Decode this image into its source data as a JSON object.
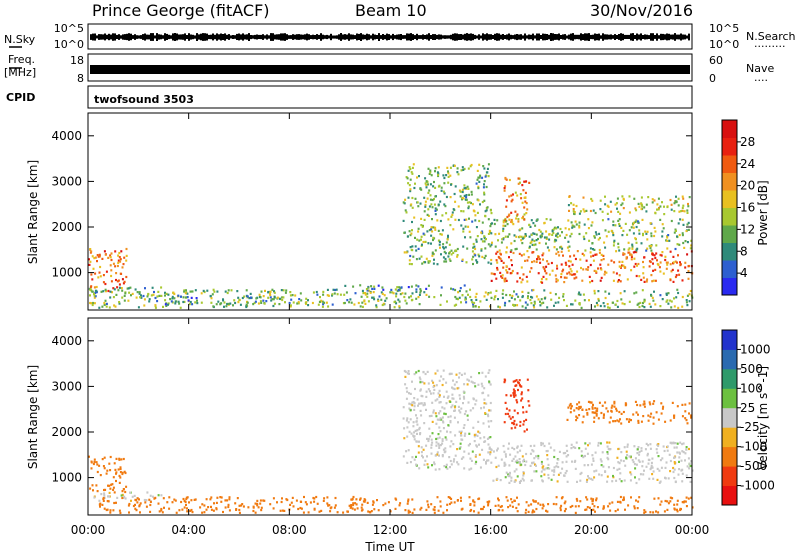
{
  "header": {
    "station": "Prince George (fitACF)",
    "beam": "Beam 10",
    "date": "30/Nov/2016"
  },
  "side_labels": {
    "nsky": "N.Sky",
    "freq_line1": "Freq.",
    "freq_line2": "[MHz]",
    "cpid": "CPID",
    "nsearch": "N.Search",
    "nave": "Nave",
    "dots_nsearch": "·········",
    "dots_nave": "····"
  },
  "strip_ticks": {
    "noise_left_top": "10^5",
    "noise_left_bottom": "10^0",
    "noise_right_top": "10^5",
    "noise_right_bottom": "10^0",
    "freq_left_top": "18",
    "freq_left_bottom": "8",
    "nave_right_top": "60",
    "nave_right_bottom": "0"
  },
  "cpid_text": "twofsound 3503",
  "axes": {
    "ylabel": "Slant Range [km]",
    "xlabel": "Time UT",
    "x_ticks": [
      "00:00",
      "04:00",
      "08:00",
      "12:00",
      "16:00",
      "20:00",
      "00:00"
    ],
    "y_ticks": [
      "1000",
      "2000",
      "3000",
      "4000"
    ]
  },
  "colorbars": {
    "power": {
      "label": "Power [dB]",
      "ticks": [
        "4",
        "8",
        "12",
        "16",
        "20",
        "24",
        "28"
      ],
      "colors": [
        "#2a2af0",
        "#2d5fd0",
        "#2f8a7a",
        "#5fa84a",
        "#a8c830",
        "#e8c020",
        "#f09020",
        "#f05a10",
        "#e82010",
        "#d81010"
      ]
    },
    "velocity": {
      "label": "Velocity [m s^-1]",
      "ticks": [
        "1000",
        "500",
        "100",
        "25",
        "-25",
        "-100",
        "-500",
        "-1000"
      ],
      "colors": [
        "#2233cc",
        "#2a6ab0",
        "#2f9a6a",
        "#6cc040",
        "#c8c8c8",
        "#f0b020",
        "#f07a10",
        "#f03a10",
        "#e81010"
      ]
    }
  },
  "chart_data": {
    "type": "heatmap",
    "x_range_hours": [
      0,
      24
    ],
    "y_range_km": [
      180,
      4500
    ],
    "power_panel": {
      "color_scale": "Power [dB]",
      "regions": [
        {
          "t0": 0.0,
          "t1": 1.5,
          "r0": 600,
          "r1": 1600,
          "power": 22
        },
        {
          "t0": 0.0,
          "t1": 3.0,
          "r0": 500,
          "r1": 700,
          "power": 10
        },
        {
          "t0": 0.0,
          "t1": 24.0,
          "r0": 250,
          "r1": 650,
          "power": 12
        },
        {
          "t0": 3.0,
          "t1": 8.0,
          "r0": 300,
          "r1": 500,
          "power": 8
        },
        {
          "t0": 10.0,
          "t1": 15.0,
          "r0": 600,
          "r1": 750,
          "power": 8
        },
        {
          "t0": 12.5,
          "t1": 16.0,
          "r0": 1200,
          "r1": 3400,
          "power": 12
        },
        {
          "t0": 16.0,
          "t1": 24.0,
          "r0": 800,
          "r1": 1500,
          "power": 22
        },
        {
          "t0": 16.0,
          "t1": 24.0,
          "r0": 1500,
          "r1": 2200,
          "power": 12
        },
        {
          "t0": 19.0,
          "t1": 24.0,
          "r0": 2300,
          "r1": 2700,
          "power": 14
        },
        {
          "t0": 16.5,
          "t1": 17.5,
          "r0": 2000,
          "r1": 3100,
          "power": 20
        }
      ]
    },
    "velocity_panel": {
      "color_scale": "Velocity [m s^-1]",
      "regions": [
        {
          "t0": 0.0,
          "t1": 1.5,
          "r0": 700,
          "r1": 1500,
          "velocity": -100
        },
        {
          "t0": 0.0,
          "t1": 3.0,
          "r0": 500,
          "r1": 700,
          "velocity": 0
        },
        {
          "t0": 0.0,
          "t1": 24.0,
          "r0": 250,
          "r1": 600,
          "velocity": -100
        },
        {
          "t0": 12.5,
          "t1": 16.0,
          "r0": 1200,
          "r1": 3400,
          "velocity": 0
        },
        {
          "t0": 16.0,
          "t1": 24.0,
          "r0": 900,
          "r1": 1800,
          "velocity": 0
        },
        {
          "t0": 19.0,
          "t1": 24.0,
          "r0": 2200,
          "r1": 2700,
          "velocity": -100
        },
        {
          "t0": 16.5,
          "t1": 17.5,
          "r0": 2000,
          "r1": 3200,
          "velocity": -500
        }
      ]
    }
  }
}
